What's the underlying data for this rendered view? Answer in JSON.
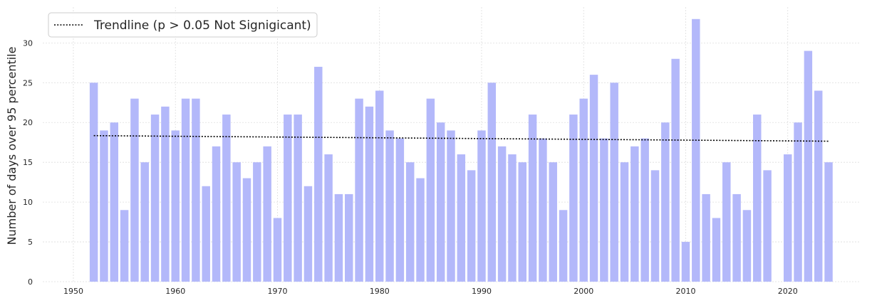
{
  "chart_data": {
    "type": "bar",
    "title": "",
    "xlabel": "",
    "ylabel": "Number of days over 95 percentile",
    "xlim": [
      1947,
      2027
    ],
    "ylim": [
      0,
      34.5
    ],
    "xticks": [
      1950,
      1960,
      1970,
      1980,
      1990,
      2000,
      2010,
      2020
    ],
    "yticks": [
      0,
      5,
      10,
      15,
      20,
      25,
      30
    ],
    "grid": true,
    "legend_position": "top-left",
    "bar_color": "#b3b8fa",
    "trend_color": "#000000",
    "x": [
      1952,
      1953,
      1954,
      1955,
      1956,
      1957,
      1958,
      1959,
      1960,
      1961,
      1962,
      1963,
      1964,
      1965,
      1966,
      1967,
      1968,
      1969,
      1970,
      1971,
      1972,
      1973,
      1974,
      1975,
      1976,
      1977,
      1978,
      1979,
      1980,
      1981,
      1982,
      1983,
      1984,
      1985,
      1986,
      1987,
      1988,
      1989,
      1990,
      1991,
      1992,
      1993,
      1994,
      1995,
      1996,
      1997,
      1998,
      1999,
      2000,
      2001,
      2002,
      2003,
      2004,
      2005,
      2006,
      2007,
      2008,
      2009,
      2010,
      2011,
      2012,
      2013,
      2014,
      2015,
      2016,
      2017,
      2018,
      2020,
      2021,
      2022,
      2023,
      2024
    ],
    "values": [
      25,
      19,
      20,
      9,
      23,
      15,
      21,
      22,
      19,
      23,
      23,
      12,
      17,
      21,
      15,
      13,
      15,
      17,
      8,
      21,
      21,
      12,
      27,
      16,
      11,
      11,
      23,
      22,
      24,
      19,
      18,
      15,
      13,
      23,
      20,
      19,
      16,
      14,
      19,
      25,
      17,
      16,
      15,
      21,
      18,
      15,
      9,
      21,
      23,
      26,
      18,
      25,
      15,
      17,
      18,
      14,
      20,
      28,
      5,
      33,
      11,
      8,
      15,
      11,
      9,
      21,
      14,
      16,
      20,
      29,
      24,
      15
    ],
    "series": [
      {
        "name": "Trendline (p > 0.05 Not Signigicant)",
        "type": "line",
        "style": "dotted",
        "x": [
          1952,
          2024
        ],
        "values": [
          18.35,
          17.65
        ]
      }
    ]
  }
}
